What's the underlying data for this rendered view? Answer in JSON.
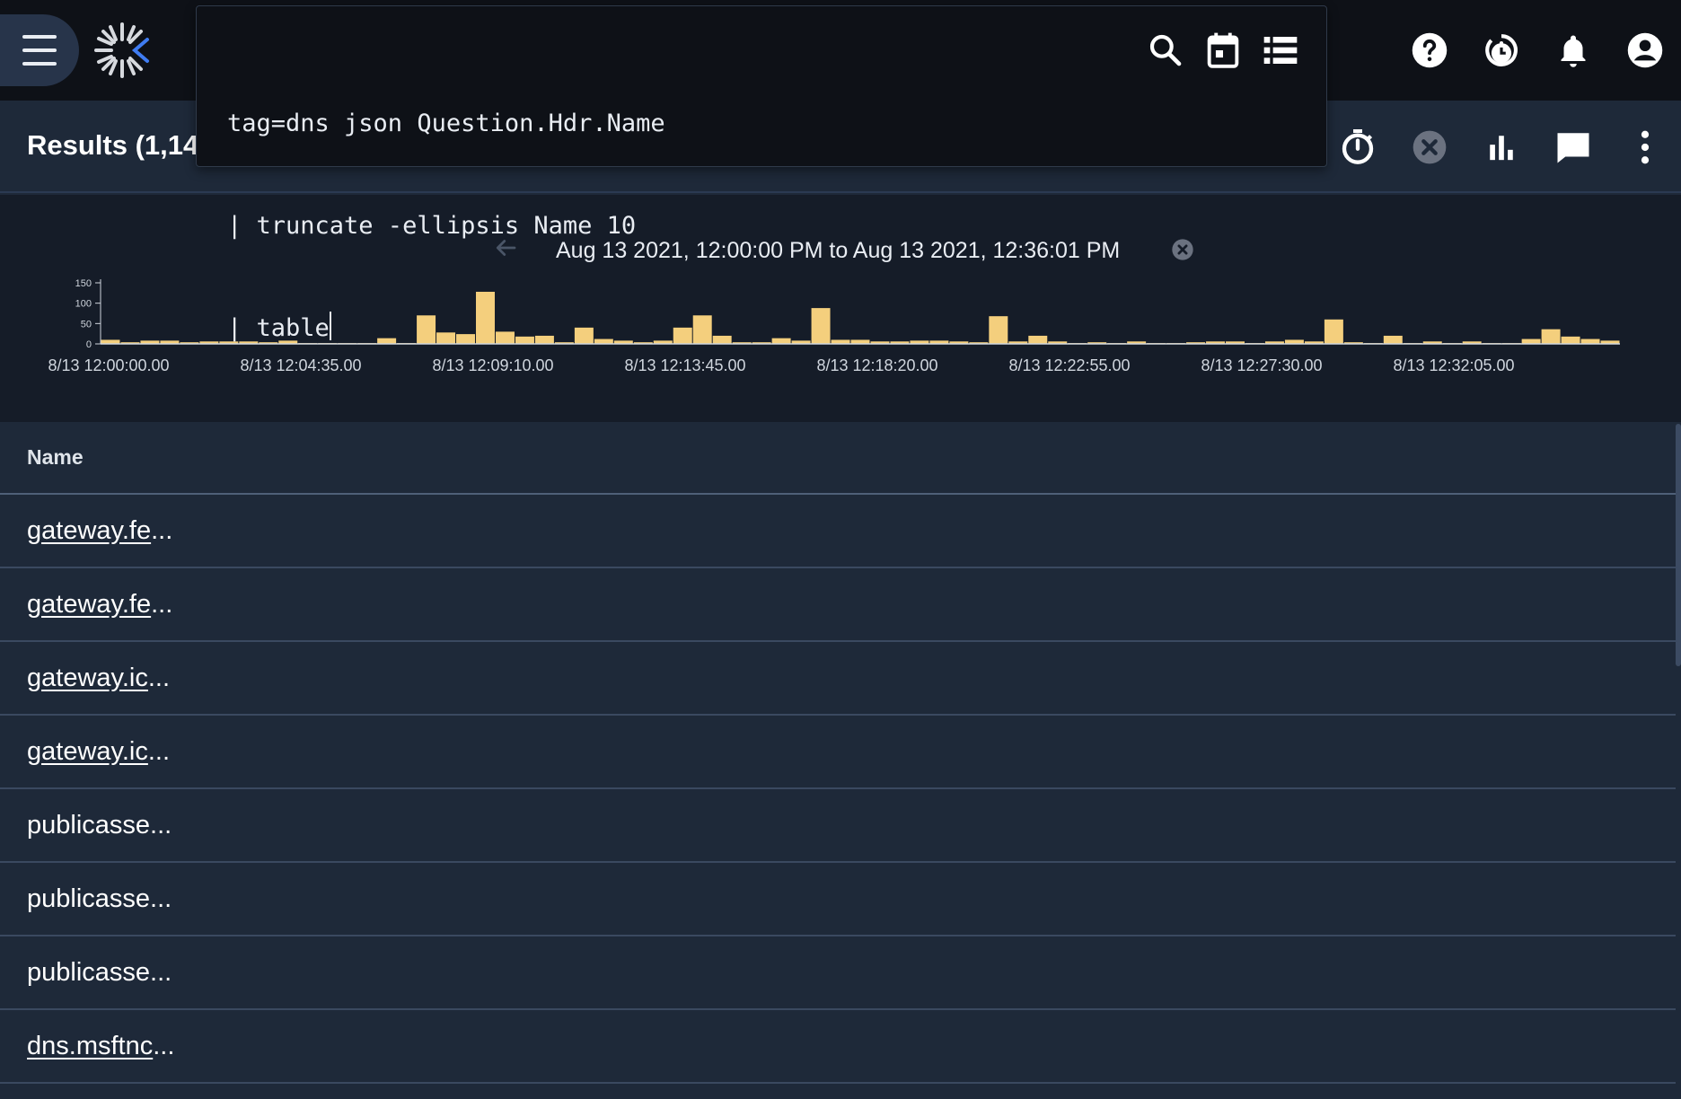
{
  "header": {
    "menu_icon": "hamburger-menu-icon",
    "logo_icon": "gravwell-logo-icon",
    "icons": [
      "help-icon",
      "history-clock-icon",
      "notifications-bell-icon",
      "account-circle-icon"
    ]
  },
  "query": {
    "lines": [
      "tag=dns json Question.Hdr.Name",
      "| truncate -ellipsis Name 10",
      "| table"
    ],
    "icons": [
      "search-icon",
      "calendar-icon",
      "list-view-icon"
    ]
  },
  "results": {
    "title": "Results (1,14",
    "icons": [
      "timer-icon",
      "cancel-circle-icon",
      "bar-chart-icon",
      "comment-icon",
      "more-vert-icon"
    ]
  },
  "timeframe": {
    "range_text": "Aug 13 2021, 12:00:00 PM to Aug 13 2021, 12:36:01 PM"
  },
  "chart_data": {
    "type": "bar",
    "yticks": [
      "150",
      "100",
      "50",
      "0"
    ],
    "ylim": [
      0,
      150
    ],
    "xticks": [
      "8/13 12:00:00.00",
      "8/13 12:04:35.00",
      "8/13 12:09:10.00",
      "8/13 12:13:45.00",
      "8/13 12:18:20.00",
      "8/13 12:22:55.00",
      "8/13 12:27:30.00",
      "8/13 12:32:05.00"
    ],
    "values": [
      10,
      4,
      8,
      8,
      4,
      6,
      6,
      6,
      4,
      8,
      2,
      2,
      2,
      2,
      14,
      2,
      70,
      28,
      24,
      128,
      30,
      18,
      20,
      4,
      40,
      12,
      8,
      4,
      8,
      40,
      70,
      20,
      4,
      4,
      14,
      8,
      88,
      10,
      10,
      6,
      6,
      8,
      8,
      6,
      4,
      68,
      6,
      20,
      6,
      2,
      4,
      2,
      6,
      2,
      2,
      4,
      6,
      6,
      2,
      6,
      10,
      6,
      60,
      4,
      2,
      20,
      2,
      6,
      2,
      6,
      2,
      2,
      12,
      36,
      18,
      12,
      8
    ],
    "color": "#f4cf7d"
  },
  "table": {
    "column": "Name",
    "rows": [
      {
        "prefix": "gateway.fe",
        "suffix": "...",
        "link": true
      },
      {
        "prefix": "gateway.fe",
        "suffix": "...",
        "link": true
      },
      {
        "prefix": "gateway.ic",
        "suffix": "...",
        "link": true
      },
      {
        "prefix": "gateway.ic",
        "suffix": "...",
        "link": true
      },
      {
        "prefix": "publicasse",
        "suffix": "...",
        "link": false
      },
      {
        "prefix": "publicasse",
        "suffix": "...",
        "link": false
      },
      {
        "prefix": "publicasse",
        "suffix": "...",
        "link": false
      },
      {
        "prefix": "dns.msftnc",
        "suffix": "...",
        "link": true
      }
    ]
  }
}
